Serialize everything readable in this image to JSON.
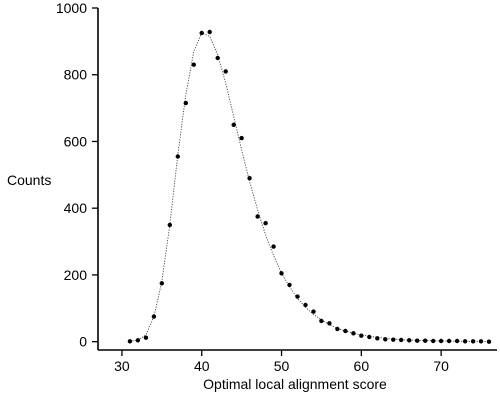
{
  "chart_data": {
    "type": "scatter",
    "xlabel": "Optimal local alignment score",
    "ylabel": "Counts",
    "xlim": [
      27,
      77
    ],
    "ylim": [
      -25,
      1000
    ],
    "xticks": [
      30,
      40,
      50,
      60,
      70
    ],
    "yticks": [
      0,
      200,
      400,
      600,
      800,
      1000
    ],
    "grid": false,
    "series": [
      {
        "x": [
          31,
          32,
          33,
          34,
          35,
          36,
          37,
          38,
          39,
          40,
          41,
          42,
          43,
          44,
          45,
          46,
          47,
          48,
          49,
          50,
          51,
          52,
          53,
          54,
          55,
          56,
          57,
          58,
          59,
          60,
          61,
          62,
          63,
          64,
          65,
          66,
          67,
          68,
          69,
          70,
          71,
          72,
          73,
          74,
          75,
          76
        ],
        "y": [
          1,
          4,
          12,
          75,
          175,
          350,
          555,
          715,
          830,
          925,
          928,
          850,
          810,
          650,
          610,
          490,
          375,
          355,
          285,
          205,
          170,
          135,
          110,
          90,
          62,
          55,
          38,
          32,
          25,
          18,
          14,
          10,
          7,
          6,
          5,
          4,
          3,
          3,
          2,
          2,
          2,
          2,
          1,
          1,
          1,
          0
        ]
      }
    ],
    "fit_curve": {
      "x": [
        31,
        32,
        33,
        34,
        35,
        36,
        37,
        38,
        39,
        40,
        41,
        42,
        43,
        44,
        45,
        46,
        47,
        48,
        49,
        50,
        51,
        52,
        53,
        54,
        55,
        56,
        57,
        58,
        59,
        60,
        61,
        62,
        63,
        64,
        65,
        66,
        67,
        68,
        69,
        70,
        71,
        72,
        73,
        74,
        75,
        76
      ],
      "y": [
        1,
        5,
        20,
        75,
        180,
        350,
        560,
        740,
        870,
        925,
        915,
        860,
        775,
        675,
        575,
        480,
        395,
        320,
        258,
        205,
        165,
        130,
        103,
        82,
        65,
        51,
        40,
        32,
        25,
        20,
        16,
        13,
        10,
        8,
        6,
        5,
        4,
        3,
        3,
        2,
        2,
        1,
        1,
        1,
        1,
        0
      ]
    }
  }
}
